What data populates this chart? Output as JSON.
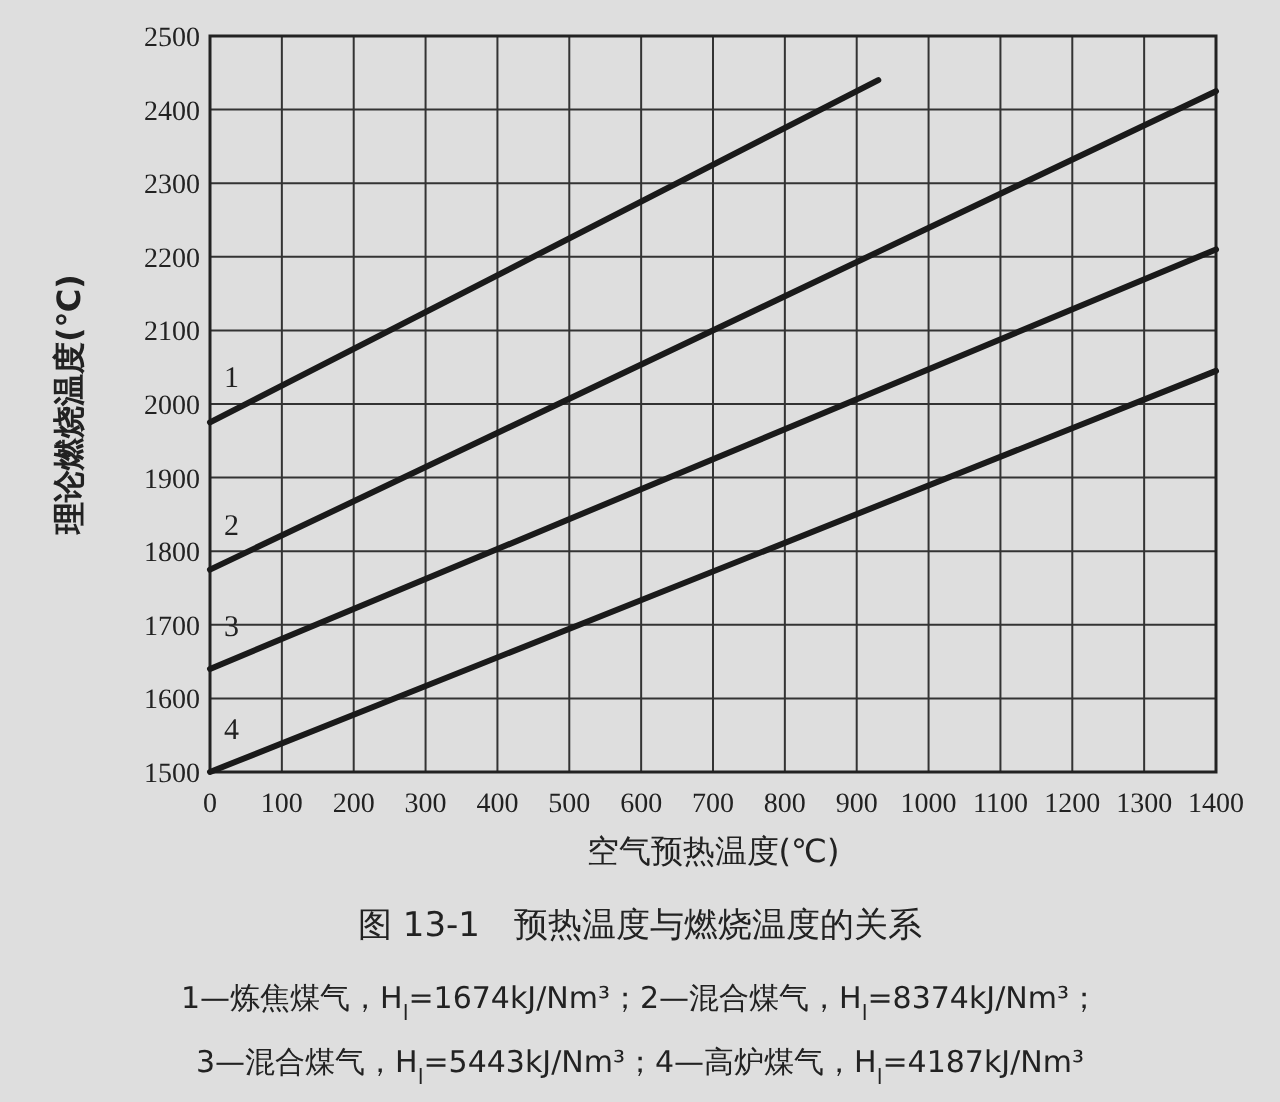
{
  "chart_data": {
    "type": "line",
    "title": "图 13-1　预热温度与燃烧温度的关系",
    "xlabel": "空气预热温度(℃)",
    "ylabel": "理论燃烧温度(℃)",
    "xlim": [
      0,
      1400
    ],
    "ylim": [
      1500,
      2500
    ],
    "xticks": [
      0,
      100,
      200,
      300,
      400,
      500,
      600,
      700,
      800,
      900,
      1000,
      1100,
      1200,
      1300,
      1400
    ],
    "yticks": [
      1500,
      1600,
      1700,
      1800,
      1900,
      2000,
      2100,
      2200,
      2300,
      2400,
      2500
    ],
    "grid": true,
    "line_style": "solid",
    "series": [
      {
        "name": "1",
        "color": "#1a1a1a",
        "x": [
          0,
          930
        ],
        "values": [
          1975,
          2440
        ]
      },
      {
        "name": "2",
        "color": "#1a1a1a",
        "x": [
          0,
          1400
        ],
        "values": [
          1775,
          2425
        ]
      },
      {
        "name": "3",
        "color": "#1a1a1a",
        "x": [
          0,
          1400
        ],
        "values": [
          1640,
          2210
        ]
      },
      {
        "name": "4",
        "color": "#1a1a1a",
        "x": [
          0,
          1400
        ],
        "values": [
          1500,
          2045
        ]
      }
    ],
    "annotations": [
      "1—炼焦煤气，H$_{l}$=1674kJ/Nm³；2—混合煤气，H$_{l}$=8374kJ/Nm³；",
      "3—混合煤气，H$_{l}$=5443kJ/Nm³；4—高炉煤气，H$_{l}$=4187kJ/Nm³"
    ]
  }
}
